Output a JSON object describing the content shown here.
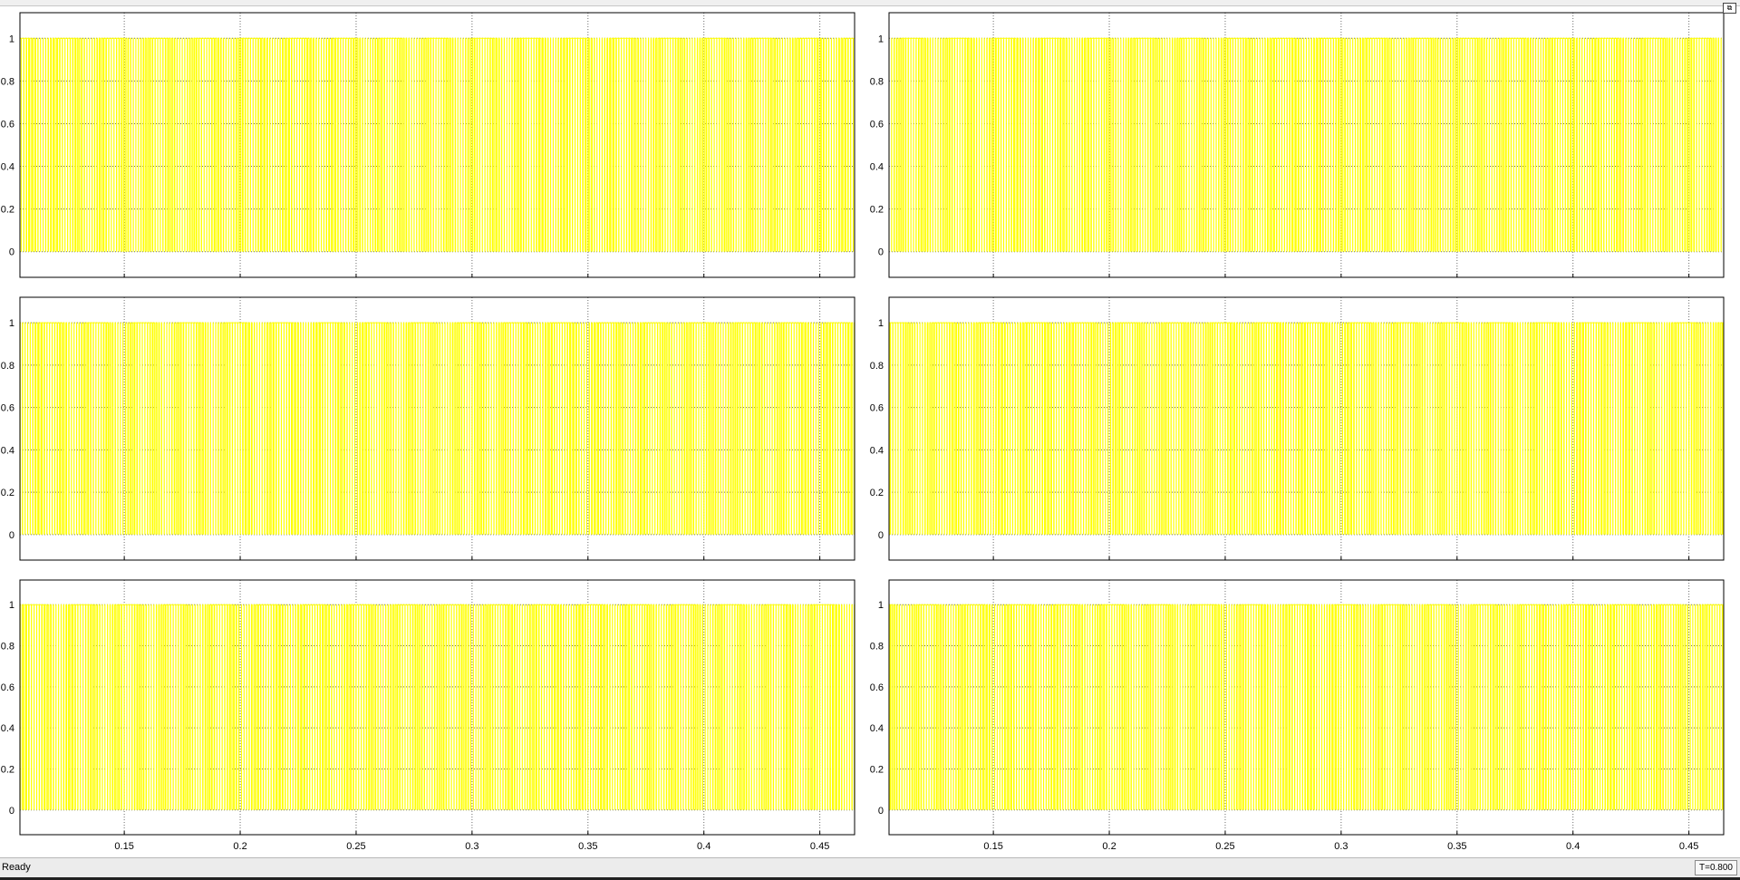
{
  "window": {
    "undock_icon": "undock-icon",
    "undock_glyph": "⧉"
  },
  "colors": {
    "signal": "#ffff00",
    "grid": "#6e6e6e",
    "axes": "#000000",
    "background": "#ffffff"
  },
  "axes_common": {
    "xlim": [
      0.105,
      0.465
    ],
    "ylim": [
      -0.12,
      1.12
    ],
    "xticks": [
      0.15,
      0.2,
      0.25,
      0.3,
      0.35,
      0.4,
      0.45
    ],
    "xtick_labels": [
      "0.15",
      "0.2",
      "0.25",
      "0.3",
      "0.35",
      "0.4",
      "0.45"
    ],
    "yticks": [
      0,
      0.2,
      0.4,
      0.6,
      0.8,
      1
    ],
    "ytick_labels": [
      "0",
      "0.2",
      "0.4",
      "0.6",
      "0.8",
      "1"
    ],
    "grid": true
  },
  "chart_data": [
    {
      "type": "line",
      "name": "",
      "signal": "pwm",
      "carrier_hz": 900,
      "mod_hz": 50,
      "phase_deg": 0,
      "ylim": [
        0,
        1
      ]
    },
    {
      "type": "line",
      "name": "",
      "signal": "pwm",
      "carrier_hz": 900,
      "mod_hz": 50,
      "phase_deg": 180,
      "ylim": [
        0,
        1
      ]
    },
    {
      "type": "line",
      "name": "",
      "signal": "pwm",
      "carrier_hz": 900,
      "mod_hz": 50,
      "phase_deg": 120,
      "ylim": [
        0,
        1
      ]
    },
    {
      "type": "line",
      "name": "",
      "signal": "pwm",
      "carrier_hz": 900,
      "mod_hz": 50,
      "phase_deg": 300,
      "ylim": [
        0,
        1
      ]
    },
    {
      "type": "line",
      "name": "",
      "signal": "pwm",
      "carrier_hz": 900,
      "mod_hz": 50,
      "phase_deg": 240,
      "ylim": [
        0,
        1
      ]
    },
    {
      "type": "line",
      "name": "",
      "signal": "pwm",
      "carrier_hz": 900,
      "mod_hz": 50,
      "phase_deg": 60,
      "ylim": [
        0,
        1
      ]
    }
  ],
  "statusbar": {
    "status": "Ready",
    "time": "T=0.800"
  }
}
